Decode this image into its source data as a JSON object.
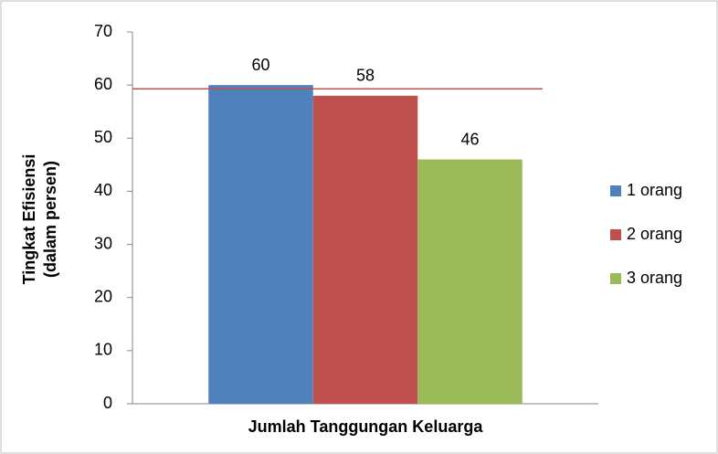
{
  "chart_data": {
    "type": "bar",
    "x_label": "Jumlah Tanggungan Keluarga",
    "y_label": [
      "Tingkat Efisiensi",
      "(dalam persen)"
    ],
    "categories": [
      null
    ],
    "series": [
      {
        "name": "1 orang",
        "color": "#4f81bd",
        "values": [
          60
        ]
      },
      {
        "name": "2 orang",
        "color": "#c0504d",
        "values": [
          58
        ]
      },
      {
        "name": "3 orang",
        "color": "#9bbb59",
        "values": [
          46
        ]
      }
    ],
    "reference_line": {
      "value": 59.3,
      "color": "#c0504d"
    },
    "ylim": [
      0,
      70
    ],
    "yticks": [
      0,
      10,
      20,
      30,
      40,
      50,
      60,
      70
    ],
    "grid": false,
    "legend": "right"
  }
}
